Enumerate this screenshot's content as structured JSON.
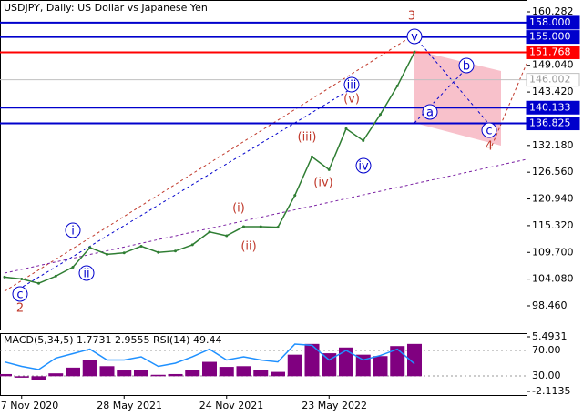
{
  "chart_data": [
    {
      "type": "line",
      "title": "USDJPY, Daily:  US Dollar vs Japanese Yen",
      "categories": [
        null,
        "27 Nov 2020",
        null,
        null,
        null,
        null,
        null,
        "28 May 2021",
        null,
        null,
        null,
        null,
        null,
        "24 Nov 2021",
        null,
        null,
        null,
        null,
        null,
        "23 May 2022",
        null,
        null,
        null,
        null,
        null
      ],
      "values": [
        104.5,
        104.1,
        103.2,
        104.7,
        106.6,
        110.7,
        109.3,
        109.6,
        111.0,
        109.7,
        110.0,
        111.3,
        114.0,
        113.2,
        115.1,
        115.1,
        115.0,
        121.7,
        129.8,
        127.1,
        135.7,
        133.2,
        138.7,
        144.7,
        151.8
      ],
      "color": "#2e7d32",
      "ylim": [
        93.48,
        162.77
      ],
      "yticks": [
        160.282,
        {
          "value": 149.04,
          "label": "149.040"
        },
        {
          "value": 143.42,
          "label": "143.420"
        },
        {
          "value": 132.18,
          "label": "132.180"
        },
        {
          "value": 126.56,
          "label": "126.560"
        },
        {
          "value": 120.94,
          "label": "120.940"
        },
        {
          "value": 115.32,
          "label": "115.320"
        },
        {
          "value": 109.7,
          "label": "109.700"
        },
        {
          "value": 104.08,
          "label": "104.080"
        },
        {
          "value": 98.46,
          "label": "98.460"
        }
      ],
      "levels": [
        {
          "value": 158,
          "label": "158.000",
          "color": "#0000cc"
        },
        {
          "value": 155,
          "label": "155.000",
          "color": "#0000cc"
        },
        {
          "value": 151.768,
          "label": "151.768",
          "color": "#ff0000"
        },
        {
          "value": 146.002,
          "label": "146.002",
          "color": "#c0c0c0"
        },
        {
          "value": 140.133,
          "label": "140.133",
          "color": "#0000cc"
        },
        {
          "value": 136.825,
          "label": "136.825",
          "color": "#0000cc"
        }
      ],
      "annotations": [
        "3",
        "v",
        "iii",
        "(v)",
        "(iii)",
        "(iv)",
        "iv",
        "(i)",
        "(ii)",
        "i",
        "ii",
        "c",
        "2",
        "a",
        "b",
        "c",
        "4"
      ]
    },
    {
      "type": "bar",
      "title": "MACD(5,34,5) 1.7731 2.9555 RSI(14) 49.44",
      "values": [
        0.3,
        -0.2,
        -0.5,
        0.4,
        1.2,
        2.3,
        1.4,
        0.8,
        0.9,
        0.2,
        0.3,
        0.9,
        2.0,
        1.3,
        1.4,
        0.9,
        0.6,
        3.0,
        4.5,
        3.2,
        4.0,
        3.0,
        2.8,
        4.2,
        4.5
      ],
      "color": "#800080",
      "ylim": [
        -2.1135,
        5.4931
      ],
      "yticks": [
        5.4931,
        -2.1135
      ],
      "rsi": [
        52,
        45,
        40,
        58,
        65,
        72,
        55,
        55,
        60,
        45,
        50,
        60,
        72,
        55,
        60,
        55,
        52,
        80,
        78,
        55,
        70,
        55,
        62,
        72,
        49
      ],
      "rsi_color": "#1e90ff",
      "y2lim": [
        5.7,
        91.4
      ],
      "y2ticks": [
        {
          "value": 70,
          "label": "70.00"
        },
        {
          "value": 30,
          "label": "30.00"
        }
      ]
    }
  ]
}
